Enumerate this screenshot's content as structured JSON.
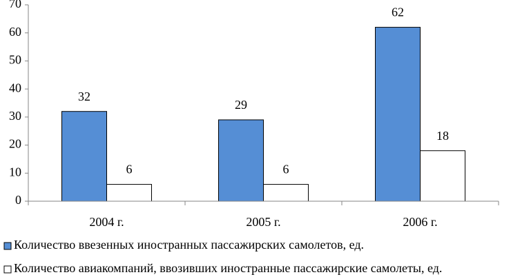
{
  "chart_data": {
    "type": "bar",
    "categories": [
      "2004 г.",
      "2005 г.",
      "2006 г."
    ],
    "series": [
      {
        "name": "Количество ввезенных иностранных пассажирских самолетов, ед.",
        "color": "#558ed5",
        "values": [
          32,
          29,
          62
        ]
      },
      {
        "name": "Количество авиакомпаний, ввозивших иностранные пассажирские самолеты, ед.",
        "color": "#ffffff",
        "values": [
          6,
          6,
          18
        ]
      }
    ],
    "ylim": [
      0,
      70
    ],
    "yticks": [
      0,
      10,
      20,
      30,
      40,
      50,
      60,
      70
    ],
    "grid": false,
    "legend": "bottom"
  }
}
